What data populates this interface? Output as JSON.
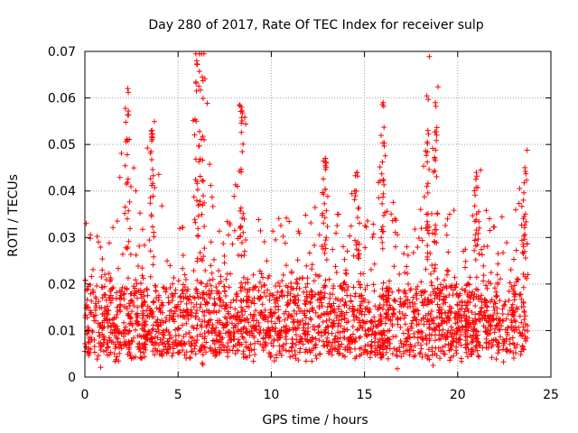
{
  "chart_data": {
    "type": "scatter",
    "title": "Day 280 of 2017, Rate Of TEC Index for receiver sulp",
    "xlabel": "GPS time / hours",
    "ylabel": "ROTI / TECUs",
    "xlim": [
      0,
      25
    ],
    "ylim": [
      0,
      0.07
    ],
    "xticks": [
      0,
      5,
      10,
      15,
      20,
      25
    ],
    "xtick_labels": [
      "0",
      "5",
      "10",
      "15",
      "20",
      "25"
    ],
    "yticks": [
      0,
      0.01,
      0.02,
      0.03,
      0.04,
      0.05,
      0.06,
      0.07
    ],
    "ytick_labels": [
      "0",
      "0.01",
      "0.02",
      "0.03",
      "0.04",
      "0.05",
      "0.06",
      "0.07"
    ],
    "grid": true,
    "marker": "plus",
    "color": "#ff0000",
    "data_span_hours": [
      0,
      23.8
    ],
    "bulk_band": [
      0.005,
      0.02
    ],
    "peaks": [
      {
        "x": 2.3,
        "y": 0.062
      },
      {
        "x": 3.6,
        "y": 0.053
      },
      {
        "x": 6.0,
        "y": 0.068
      },
      {
        "x": 6.3,
        "y": 0.0645
      },
      {
        "x": 8.4,
        "y": 0.058
      },
      {
        "x": 12.9,
        "y": 0.047
      },
      {
        "x": 14.6,
        "y": 0.044
      },
      {
        "x": 16.0,
        "y": 0.059
      },
      {
        "x": 18.4,
        "y": 0.053
      },
      {
        "x": 18.8,
        "y": 0.059
      },
      {
        "x": 21.0,
        "y": 0.044
      },
      {
        "x": 23.6,
        "y": 0.045
      }
    ]
  }
}
